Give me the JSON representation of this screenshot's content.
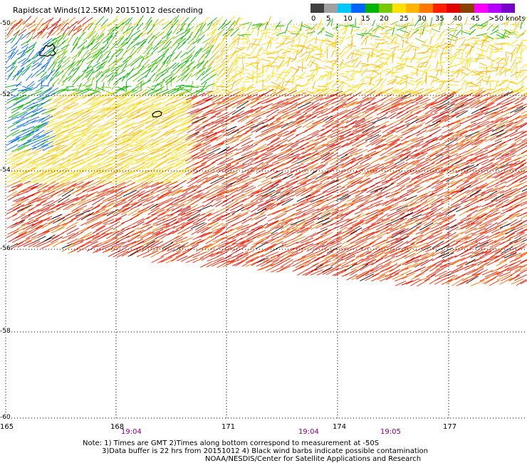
{
  "title": "Rapidscat Winds(12.5KM) 20151012 descending",
  "legend": {
    "ticks": [
      "0",
      "5",
      "10",
      "15",
      "20",
      "25",
      "30",
      "35",
      "40",
      "45",
      ">50 knots"
    ],
    "colors": [
      "#404040",
      "#a0a0a0",
      "#00c8ff",
      "#0064ff",
      "#00b400",
      "#78c800",
      "#ffe000",
      "#ffb400",
      "#ff7800",
      "#ff2000",
      "#e00000",
      "#8c4000",
      "#ff00ff",
      "#b400ff",
      "#7800c8"
    ]
  },
  "map": {
    "lat_labels": [
      "-50",
      "-52",
      "-54",
      "-56",
      "-58",
      "-60"
    ],
    "lon_labels": [
      "165",
      "168",
      "171",
      "174",
      "177"
    ],
    "time_labels": [
      "19:04",
      "19:04",
      "19:05"
    ]
  },
  "notes": {
    "line1": "Note: 1) Times are GMT 2)Times along bottom correspond to measurement at -50S",
    "line2": "3)Data buffer is 22 hrs from 20151012 4) Black wind barbs indicate possible contamination",
    "line3": "NOAA/NESDIS/Center for Satellite Applications and Research"
  }
}
